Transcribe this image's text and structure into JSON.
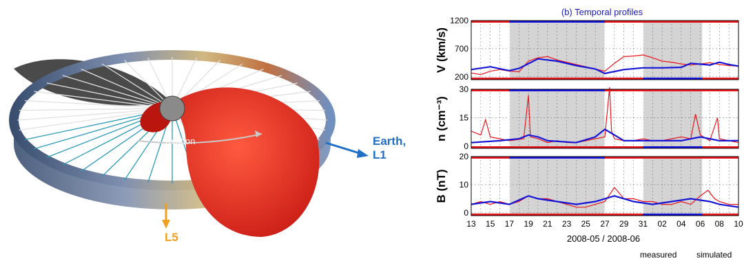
{
  "left_figure": {
    "rotation_label": "rotation",
    "earth_label": "Earth,\nL1",
    "l5_label": "L5",
    "colors": {
      "sheet": "#d8201c",
      "earth_arrow": "#1f6fc8",
      "l5_arrow": "#f0a020"
    }
  },
  "chart_data": {
    "type": "line",
    "title": "(b) Temporal profiles",
    "xlabel": "2008-05 / 2008-06",
    "x_tick_labels": [
      "13",
      "15",
      "17",
      "19",
      "21",
      "23",
      "25",
      "27",
      "29",
      "31",
      "02",
      "04",
      "06",
      "08",
      "10"
    ],
    "x_range_days": [
      0,
      28
    ],
    "legend": [
      "measured",
      "simulated"
    ],
    "colors": {
      "measured": "#e8141c",
      "simulated": "#1414d8",
      "shade": "#d4d4d4",
      "title": "#1a1ab0"
    },
    "shaded_intervals": [
      [
        4,
        14
      ],
      [
        18,
        24.2
      ]
    ],
    "white_interval": [
      24.5,
      25.5
    ],
    "panels": [
      {
        "ylabel": "V (km/s)",
        "ylim": [
          150,
          1200
        ],
        "yticks": [
          200,
          700,
          1200
        ],
        "measured": [
          [
            0,
            270
          ],
          [
            1,
            240
          ],
          [
            2,
            300
          ],
          [
            3,
            330
          ],
          [
            4,
            300
          ],
          [
            5,
            290
          ],
          [
            6,
            480
          ],
          [
            7,
            540
          ],
          [
            8,
            560
          ],
          [
            9,
            500
          ],
          [
            10,
            460
          ],
          [
            11,
            420
          ],
          [
            12,
            380
          ],
          [
            13,
            340
          ],
          [
            14,
            300
          ],
          [
            15,
            440
          ],
          [
            16,
            560
          ],
          [
            17,
            570
          ],
          [
            18,
            590
          ],
          [
            19,
            540
          ],
          [
            20,
            480
          ],
          [
            21,
            460
          ],
          [
            22,
            430
          ],
          [
            23,
            410
          ],
          [
            24,
            430
          ],
          [
            25,
            450
          ],
          [
            26,
            420
          ],
          [
            27,
            400
          ],
          [
            28,
            390
          ]
        ],
        "simulated": [
          [
            0,
            330
          ],
          [
            2,
            380
          ],
          [
            4,
            310
          ],
          [
            5,
            350
          ],
          [
            7,
            520
          ],
          [
            9,
            480
          ],
          [
            11,
            400
          ],
          [
            13,
            340
          ],
          [
            14,
            260
          ],
          [
            16,
            330
          ],
          [
            18,
            360
          ],
          [
            20,
            360
          ],
          [
            22,
            370
          ],
          [
            23,
            440
          ],
          [
            25,
            410
          ],
          [
            26,
            460
          ],
          [
            27,
            420
          ],
          [
            28,
            390
          ]
        ]
      },
      {
        "ylabel": "n (cm⁻³)",
        "ylim": [
          -1,
          30
        ],
        "yticks": [
          0,
          15,
          30
        ],
        "measured": [
          [
            0,
            8
          ],
          [
            1,
            6
          ],
          [
            1.5,
            14
          ],
          [
            2,
            5
          ],
          [
            3,
            4
          ],
          [
            4,
            3
          ],
          [
            5.5,
            4
          ],
          [
            6,
            27
          ],
          [
            6.2,
            5
          ],
          [
            7,
            4
          ],
          [
            8,
            2
          ],
          [
            9,
            3
          ],
          [
            10,
            2
          ],
          [
            11,
            2
          ],
          [
            12,
            3
          ],
          [
            13,
            4
          ],
          [
            14,
            5
          ],
          [
            14.5,
            31
          ],
          [
            14.7,
            8
          ],
          [
            15,
            4
          ],
          [
            16,
            3
          ],
          [
            17,
            3
          ],
          [
            18,
            4
          ],
          [
            19,
            3
          ],
          [
            20,
            3
          ],
          [
            21,
            4
          ],
          [
            22,
            5
          ],
          [
            23,
            4
          ],
          [
            23.5,
            17
          ],
          [
            24,
            6
          ],
          [
            25,
            3
          ],
          [
            25.8,
            15
          ],
          [
            26,
            4
          ],
          [
            27,
            3
          ],
          [
            28,
            2
          ]
        ],
        "simulated": [
          [
            0,
            2
          ],
          [
            3,
            3
          ],
          [
            5,
            4
          ],
          [
            6,
            6
          ],
          [
            7,
            5
          ],
          [
            8,
            3
          ],
          [
            11,
            2
          ],
          [
            13,
            5
          ],
          [
            14,
            9
          ],
          [
            15,
            6
          ],
          [
            16,
            3
          ],
          [
            19,
            3
          ],
          [
            22,
            3
          ],
          [
            24,
            5
          ],
          [
            26,
            3
          ],
          [
            28,
            3
          ]
        ]
      },
      {
        "ylabel": "B (nT)",
        "ylim": [
          -1,
          20
        ],
        "yticks": [
          0,
          10,
          20
        ],
        "measured": [
          [
            0,
            3
          ],
          [
            1,
            4
          ],
          [
            2,
            3
          ],
          [
            3,
            4
          ],
          [
            4,
            3
          ],
          [
            5,
            4
          ],
          [
            6,
            6
          ],
          [
            7,
            5
          ],
          [
            8,
            5
          ],
          [
            9,
            4
          ],
          [
            10,
            3
          ],
          [
            11,
            2
          ],
          [
            12,
            2
          ],
          [
            13,
            3
          ],
          [
            14,
            4
          ],
          [
            15,
            9
          ],
          [
            16,
            5
          ],
          [
            17,
            5
          ],
          [
            18,
            4
          ],
          [
            19,
            4
          ],
          [
            20,
            3
          ],
          [
            21,
            3
          ],
          [
            22,
            4
          ],
          [
            23,
            3
          ],
          [
            24,
            6
          ],
          [
            24.8,
            8
          ],
          [
            25.5,
            5
          ],
          [
            26,
            4
          ],
          [
            27,
            3
          ],
          [
            28,
            3
          ]
        ],
        "simulated": [
          [
            0,
            3
          ],
          [
            2,
            4
          ],
          [
            4,
            3
          ],
          [
            6,
            6
          ],
          [
            7,
            5
          ],
          [
            9,
            4
          ],
          [
            11,
            3
          ],
          [
            13,
            4
          ],
          [
            14,
            5
          ],
          [
            15,
            6
          ],
          [
            17,
            4
          ],
          [
            19,
            3
          ],
          [
            21,
            4
          ],
          [
            23,
            5
          ],
          [
            25,
            4
          ],
          [
            26,
            3
          ],
          [
            28,
            2
          ]
        ]
      }
    ]
  }
}
